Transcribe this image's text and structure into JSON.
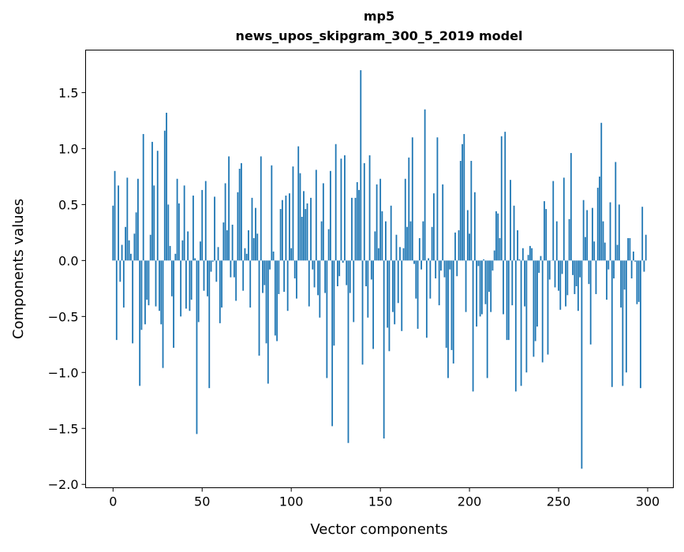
{
  "chart_data": {
    "type": "bar",
    "title": "mp5",
    "subtitle": "news_upos_skipgram_300_5_2019 model",
    "xlabel": "Vector components",
    "ylabel": "Components values",
    "xlim": [
      -15.4,
      314.4
    ],
    "ylim": [
      -2.03,
      1.88
    ],
    "xticks": [
      0,
      50,
      100,
      150,
      200,
      250,
      300
    ],
    "xtick_labels": [
      "0",
      "50",
      "100",
      "150",
      "200",
      "250",
      "300"
    ],
    "yticks": [
      -2.0,
      -1.5,
      -1.0,
      -0.5,
      0.0,
      0.5,
      1.0,
      1.5
    ],
    "ytick_labels": [
      "−2.0",
      "−1.5",
      "−1.0",
      "−0.5",
      "0.0",
      "0.5",
      "1.0",
      "1.5"
    ],
    "grid": false,
    "color": "#1f77b4",
    "values": [
      0.49,
      0.8,
      -0.71,
      0.67,
      -0.19,
      0.14,
      -0.42,
      0.3,
      0.74,
      0.18,
      0.06,
      -0.74,
      0.24,
      0.43,
      0.73,
      -1.12,
      -0.62,
      1.13,
      -0.57,
      -0.35,
      -0.4,
      0.23,
      1.06,
      0.67,
      -0.41,
      0.98,
      -0.45,
      -0.57,
      -0.96,
      1.16,
      1.32,
      0.5,
      0.13,
      -0.32,
      -0.78,
      0.06,
      0.73,
      0.51,
      -0.5,
      0.18,
      0.67,
      -0.43,
      0.26,
      -0.45,
      -0.35,
      0.58,
      0.02,
      -1.55,
      -0.55,
      0.17,
      0.63,
      -0.27,
      0.71,
      -0.32,
      -1.14,
      -0.1,
      -0.01,
      0.57,
      -0.19,
      0.12,
      -0.56,
      -0.42,
      0.34,
      0.69,
      0.27,
      0.93,
      -0.15,
      0.32,
      -0.15,
      -0.36,
      0.61,
      0.82,
      0.87,
      -0.27,
      0.11,
      0.06,
      0.27,
      -0.42,
      0.56,
      0.2,
      0.47,
      0.24,
      -0.85,
      0.93,
      -0.29,
      -0.22,
      -0.74,
      -1.1,
      -0.08,
      0.85,
      0.08,
      -0.67,
      -0.72,
      -0.3,
      0.46,
      0.54,
      -0.28,
      0.58,
      -0.45,
      0.6,
      0.11,
      0.84,
      -0.16,
      -0.34,
      1.02,
      0.78,
      0.39,
      0.62,
      0.46,
      0.51,
      -0.41,
      0.56,
      -0.08,
      -0.24,
      0.81,
      -0.31,
      -0.51,
      0.35,
      0.69,
      -0.29,
      -1.05,
      0.28,
      0.8,
      -1.48,
      -0.76,
      1.04,
      -0.23,
      -0.14,
      0.91,
      -0.02,
      0.94,
      -0.22,
      -1.63,
      -0.29,
      0.56,
      -0.55,
      0.56,
      0.7,
      0.63,
      1.7,
      -0.93,
      0.87,
      -0.23,
      -0.51,
      0.94,
      -0.17,
      -0.79,
      0.26,
      0.68,
      0.11,
      0.73,
      0.44,
      -1.59,
      0.35,
      -0.6,
      -0.81,
      0.49,
      -0.46,
      -0.57,
      0.23,
      -0.38,
      0.12,
      -0.63,
      0.11,
      0.73,
      0.3,
      0.92,
      0.35,
      1.1,
      -0.03,
      -0.34,
      -0.61,
      0.2,
      -0.08,
      0.35,
      1.35,
      -0.69,
      0.02,
      -0.34,
      0.3,
      0.6,
      -0.16,
      1.1,
      -0.4,
      -0.09,
      0.68,
      -0.15,
      -0.78,
      -1.05,
      -0.08,
      -0.8,
      -0.92,
      0.25,
      -0.14,
      0.27,
      0.89,
      1.04,
      1.13,
      -0.46,
      0.45,
      0.24,
      0.89,
      -1.17,
      0.61,
      -0.59,
      -0.05,
      -0.5,
      -0.48,
      0.01,
      -0.39,
      -1.05,
      -0.28,
      -0.46,
      -0.09,
      0.09,
      0.44,
      0.42,
      0.2,
      1.11,
      -0.48,
      1.15,
      -0.71,
      -0.71,
      0.72,
      -0.4,
      0.49,
      -1.17,
      0.27,
      0.01,
      -1.12,
      0.11,
      -0.41,
      -1.0,
      0.05,
      0.13,
      0.11,
      -0.86,
      -0.72,
      -0.59,
      -0.11,
      0.04,
      -0.91,
      0.53,
      0.46,
      -0.84,
      -0.17,
      0.0,
      0.71,
      -0.24,
      0.35,
      -0.27,
      -0.44,
      -0.12,
      0.74,
      -0.41,
      -0.31,
      0.37,
      0.96,
      -0.13,
      -0.3,
      -0.23,
      -0.45,
      -0.15,
      -1.86,
      0.54,
      0.21,
      0.45,
      -0.21,
      -0.75,
      0.47,
      0.17,
      -0.3,
      0.65,
      0.75,
      1.23,
      0.35,
      0.16,
      -0.35,
      -0.08,
      0.52,
      -1.13,
      -0.16,
      0.88,
      0.14,
      0.5,
      -0.42,
      -1.12,
      -0.26,
      -1.0,
      0.2,
      0.2,
      -0.16,
      0.08,
      -0.01,
      -0.39,
      -0.37,
      -1.14,
      0.48,
      -0.1,
      0.23
    ]
  }
}
